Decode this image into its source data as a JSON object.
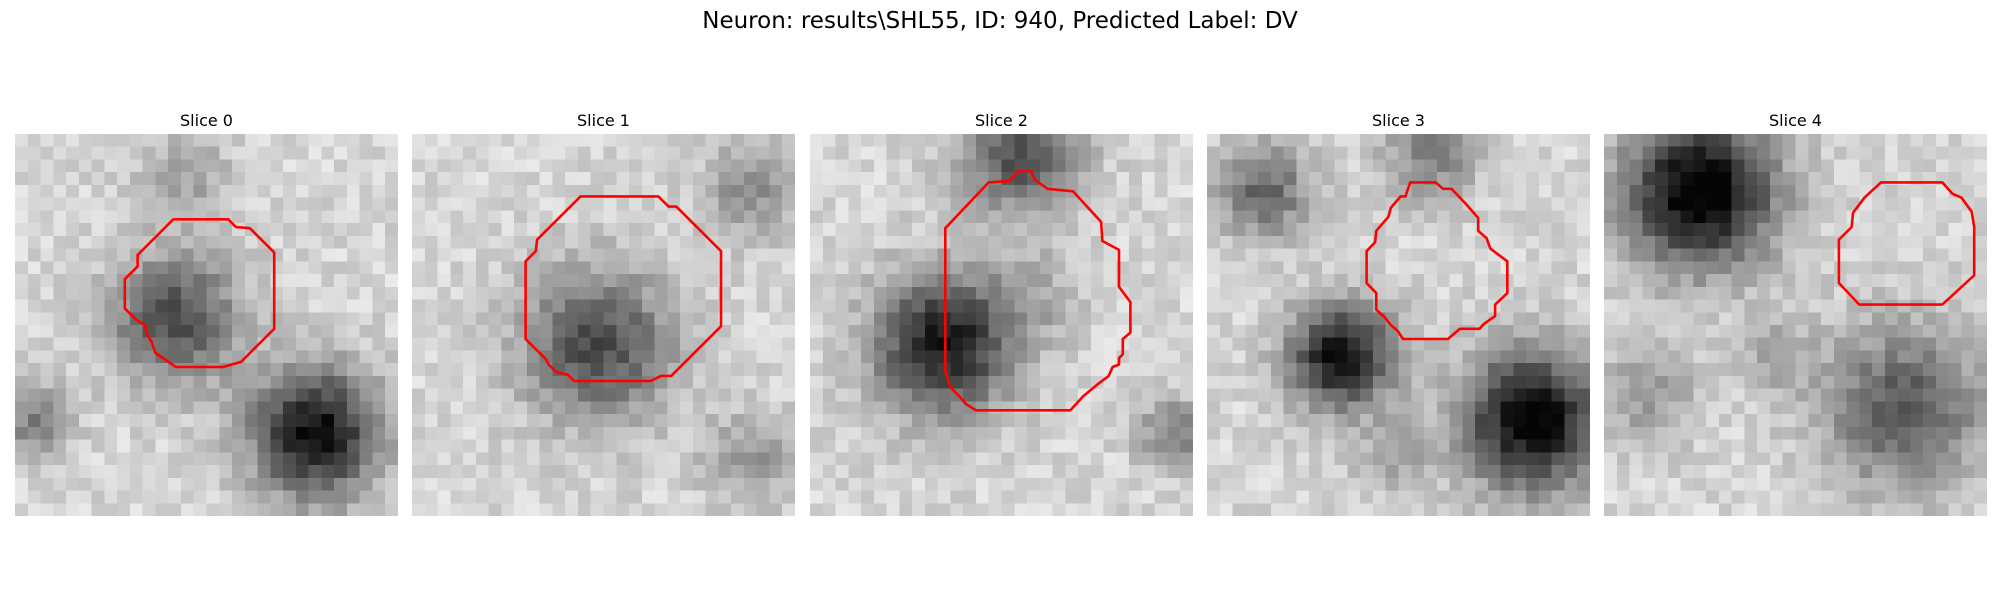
{
  "figure": {
    "title": "Neuron: results\\SHL55, ID: 940, Predicted Label: DV"
  },
  "slices": [
    {
      "title": "Slice 0",
      "roi_color": "#ff0000"
    },
    {
      "title": "Slice 1",
      "roi_color": "#ff0000"
    },
    {
      "title": "Slice 2",
      "roi_color": "#ff0000"
    },
    {
      "title": "Slice 3",
      "roi_color": "#ff0000"
    },
    {
      "title": "Slice 4",
      "roi_color": "#ff0000"
    }
  ]
}
